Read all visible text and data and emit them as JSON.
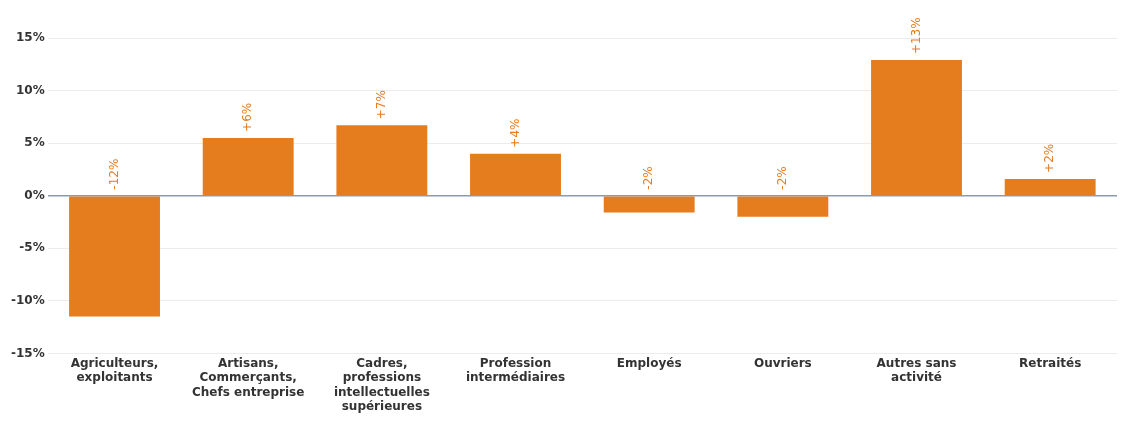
{
  "chart_data": {
    "type": "bar",
    "categories": [
      "Agriculteurs, exploitants",
      "Artisans, Commerçants, Chefs entreprise",
      "Cadres, professions intellectuelles supérieures",
      "Profession intermédiaires",
      "Employés",
      "Ouvriers",
      "Autres sans activité",
      "Retraités"
    ],
    "values": [
      -11.5,
      5.5,
      6.7,
      4.0,
      -1.6,
      -2.0,
      12.9,
      1.6
    ],
    "value_labels": [
      "-12%",
      "+6%",
      "+7%",
      "+4%",
      "-2%",
      "-2%",
      "+13%",
      "+2%"
    ],
    "color": "#e57c1e",
    "ylim": [
      -15,
      15
    ],
    "yticks": [
      {
        "value": -15,
        "label": "-15%"
      },
      {
        "value": -10,
        "label": "-10%"
      },
      {
        "value": -5,
        "label": "-5%"
      },
      {
        "value": 0,
        "label": "0%"
      },
      {
        "value": 5,
        "label": "5%"
      },
      {
        "value": 10,
        "label": "10%"
      },
      {
        "value": 15,
        "label": "15%"
      }
    ],
    "grid": "y"
  }
}
